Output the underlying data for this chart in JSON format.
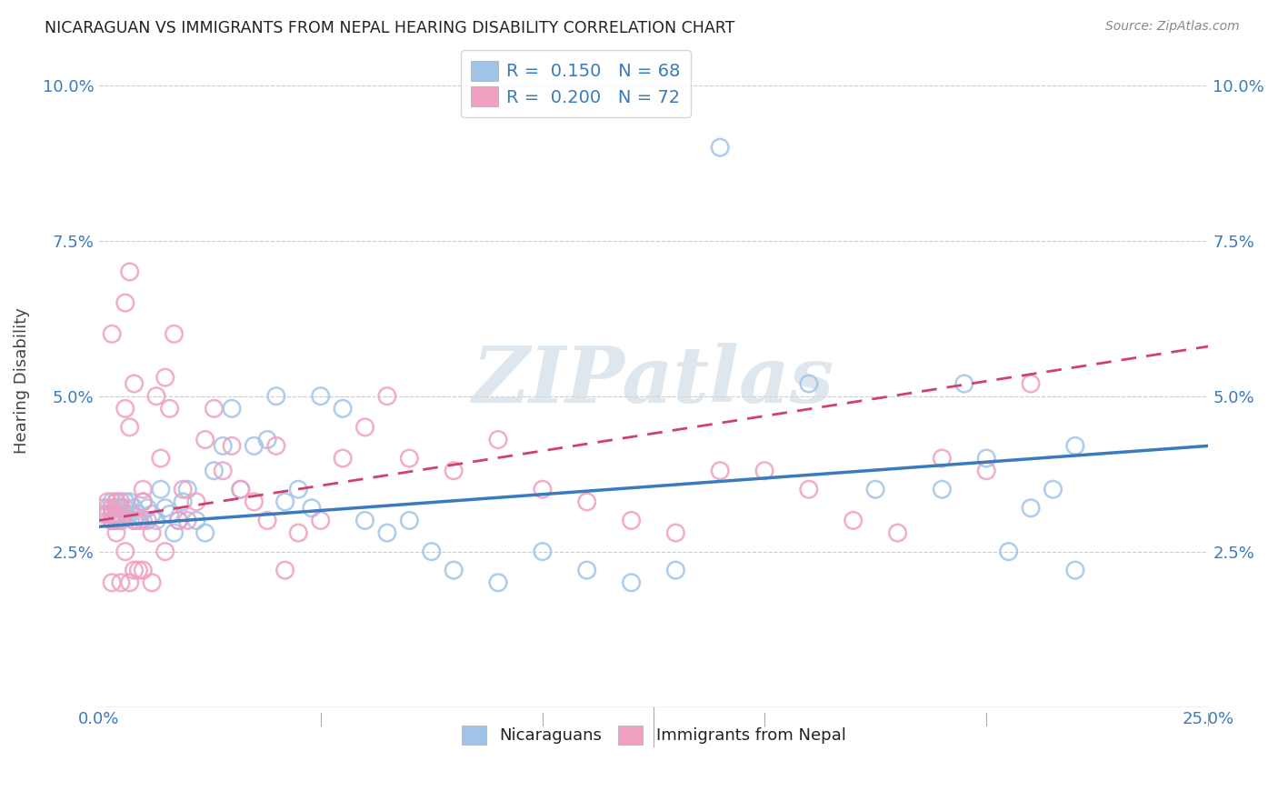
{
  "title": "NICARAGUAN VS IMMIGRANTS FROM NEPAL HEARING DISABILITY CORRELATION CHART",
  "source": "Source: ZipAtlas.com",
  "ylabel": "Hearing Disability",
  "xlim": [
    0.0,
    0.25
  ],
  "ylim": [
    0.0,
    0.105
  ],
  "xtick_pos": [
    0.0,
    0.05,
    0.1,
    0.15,
    0.2,
    0.25
  ],
  "xticklabels": [
    "0.0%",
    "",
    "",
    "",
    "",
    "25.0%"
  ],
  "ytick_pos": [
    0.0,
    0.025,
    0.05,
    0.075,
    0.1
  ],
  "yticklabels": [
    "",
    "2.5%",
    "5.0%",
    "7.5%",
    "10.0%"
  ],
  "blue_color": "#a0c4e8",
  "pink_color": "#f0a0c0",
  "blue_line_color": "#3a7abf",
  "pink_line_color": "#d04070",
  "blue_line_start_y": 0.029,
  "blue_line_end_y": 0.042,
  "pink_line_start_y": 0.03,
  "pink_line_end_y": 0.058,
  "watermark_text": "ZIPatlas",
  "legend_box_entries": [
    {
      "label": "R =  0.150   N = 68",
      "color": "#a0c4e8"
    },
    {
      "label": "R =  0.200   N = 72",
      "color": "#f0a0c0"
    }
  ],
  "bottom_legend": [
    "Nicaraguans",
    "Immigrants from Nepal"
  ],
  "blue_x": [
    0.001,
    0.002,
    0.002,
    0.003,
    0.003,
    0.003,
    0.004,
    0.004,
    0.004,
    0.004,
    0.005,
    0.005,
    0.005,
    0.006,
    0.006,
    0.006,
    0.007,
    0.007,
    0.008,
    0.008,
    0.009,
    0.01,
    0.01,
    0.011,
    0.012,
    0.013,
    0.014,
    0.015,
    0.016,
    0.017,
    0.018,
    0.019,
    0.02,
    0.022,
    0.024,
    0.026,
    0.028,
    0.03,
    0.032,
    0.035,
    0.038,
    0.04,
    0.042,
    0.045,
    0.048,
    0.05,
    0.055,
    0.06,
    0.065,
    0.07,
    0.075,
    0.08,
    0.09,
    0.1,
    0.11,
    0.12,
    0.13,
    0.14,
    0.16,
    0.175,
    0.19,
    0.2,
    0.21,
    0.22,
    0.195,
    0.205,
    0.215,
    0.22
  ],
  "blue_y": [
    0.031,
    0.032,
    0.031,
    0.03,
    0.031,
    0.033,
    0.032,
    0.031,
    0.03,
    0.033,
    0.032,
    0.031,
    0.03,
    0.033,
    0.032,
    0.031,
    0.033,
    0.031,
    0.032,
    0.03,
    0.031,
    0.03,
    0.033,
    0.032,
    0.031,
    0.03,
    0.035,
    0.032,
    0.031,
    0.028,
    0.03,
    0.033,
    0.035,
    0.03,
    0.028,
    0.038,
    0.042,
    0.048,
    0.035,
    0.042,
    0.043,
    0.05,
    0.033,
    0.035,
    0.032,
    0.05,
    0.048,
    0.03,
    0.028,
    0.03,
    0.025,
    0.022,
    0.02,
    0.025,
    0.022,
    0.02,
    0.022,
    0.09,
    0.052,
    0.035,
    0.035,
    0.04,
    0.032,
    0.022,
    0.052,
    0.025,
    0.035,
    0.042
  ],
  "pink_x": [
    0.001,
    0.002,
    0.002,
    0.003,
    0.003,
    0.003,
    0.004,
    0.004,
    0.004,
    0.005,
    0.005,
    0.005,
    0.006,
    0.006,
    0.007,
    0.007,
    0.008,
    0.008,
    0.009,
    0.01,
    0.01,
    0.011,
    0.012,
    0.013,
    0.014,
    0.015,
    0.016,
    0.017,
    0.018,
    0.019,
    0.02,
    0.022,
    0.024,
    0.026,
    0.028,
    0.03,
    0.032,
    0.035,
    0.038,
    0.04,
    0.042,
    0.045,
    0.05,
    0.055,
    0.06,
    0.065,
    0.07,
    0.08,
    0.09,
    0.1,
    0.11,
    0.12,
    0.13,
    0.14,
    0.15,
    0.16,
    0.17,
    0.18,
    0.19,
    0.2,
    0.21,
    0.015,
    0.008,
    0.006,
    0.003,
    0.004,
    0.01,
    0.012,
    0.005,
    0.007,
    0.009,
    0.003
  ],
  "pink_y": [
    0.032,
    0.031,
    0.033,
    0.03,
    0.032,
    0.031,
    0.03,
    0.033,
    0.031,
    0.03,
    0.033,
    0.032,
    0.065,
    0.048,
    0.07,
    0.045,
    0.052,
    0.03,
    0.03,
    0.035,
    0.033,
    0.03,
    0.028,
    0.05,
    0.04,
    0.053,
    0.048,
    0.06,
    0.03,
    0.035,
    0.03,
    0.033,
    0.043,
    0.048,
    0.038,
    0.042,
    0.035,
    0.033,
    0.03,
    0.042,
    0.022,
    0.028,
    0.03,
    0.04,
    0.045,
    0.05,
    0.04,
    0.038,
    0.043,
    0.035,
    0.033,
    0.03,
    0.028,
    0.038,
    0.038,
    0.035,
    0.03,
    0.028,
    0.04,
    0.038,
    0.052,
    0.025,
    0.022,
    0.025,
    0.06,
    0.028,
    0.022,
    0.02,
    0.02,
    0.02,
    0.022,
    0.02
  ]
}
